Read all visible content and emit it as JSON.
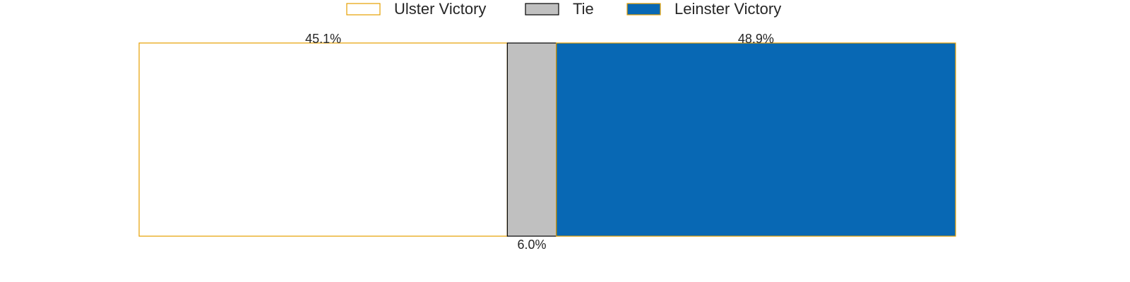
{
  "chart_data": {
    "type": "bar",
    "orientation": "horizontal-stacked",
    "categories": [
      "Ulster Victory",
      "Tie",
      "Leinster Victory"
    ],
    "values": [
      45.1,
      6.0,
      48.9
    ],
    "labels": [
      "45.1%",
      "6.0%",
      "48.9%"
    ],
    "xlim": [
      0,
      100
    ],
    "title": "",
    "xlabel": "",
    "ylabel": "",
    "grid": false,
    "legend_position": "top-center",
    "series": [
      {
        "name": "Ulster Victory",
        "value": 45.1,
        "label": "45.1%",
        "fill": "#ffffff",
        "stroke": "#e69f00",
        "label_position": "top"
      },
      {
        "name": "Tie",
        "value": 6.0,
        "label": "6.0%",
        "fill": "#c0c0c0",
        "stroke": "#000000",
        "label_position": "bottom"
      },
      {
        "name": "Leinster Victory",
        "value": 48.9,
        "label": "48.9%",
        "fill": "#0868b4",
        "stroke": "#e69f00",
        "label_position": "top"
      }
    ]
  }
}
